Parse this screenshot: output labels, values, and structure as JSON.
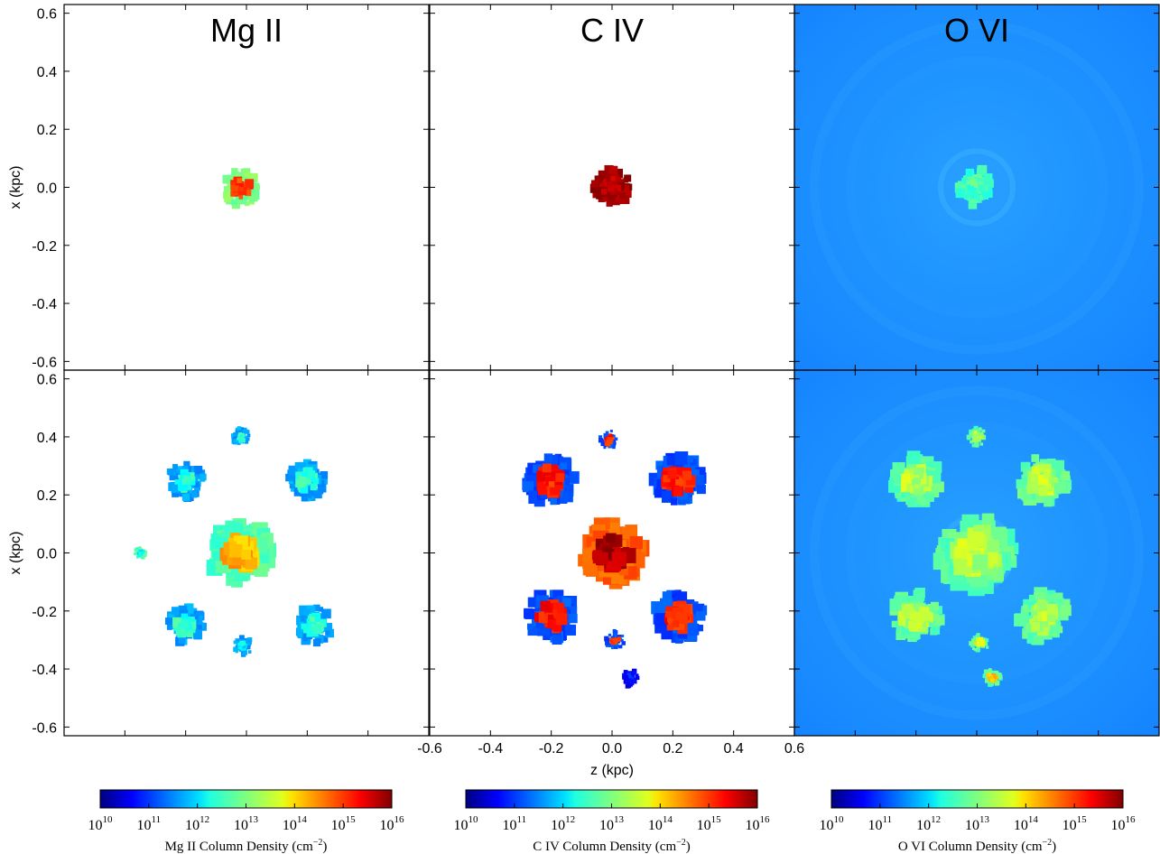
{
  "chart_data": {
    "type": "heatmap",
    "layout": "2 rows x 3 columns of column-density projection maps sharing axes",
    "panel_titles": [
      "Mg II",
      "C IV",
      "O VI"
    ],
    "ylabel": "x (kpc)",
    "xlabel": "z (kpc)",
    "xlim": [
      -0.6,
      0.6
    ],
    "ylim": [
      -0.63,
      0.63
    ],
    "y_ticks": [
      "0.6",
      "0.4",
      "0.2",
      "0.0",
      "-0.2",
      "-0.4",
      "-0.6"
    ],
    "y_tick_values": [
      0.6,
      0.4,
      0.2,
      0.0,
      -0.2,
      -0.4,
      -0.6
    ],
    "x_ticks": [
      "-0.6",
      "-0.4",
      "-0.2",
      "0.0",
      "0.2",
      "0.4",
      "0.6"
    ],
    "x_tick_values": [
      -0.6,
      -0.4,
      -0.2,
      0.0,
      0.2,
      0.4,
      0.6
    ],
    "colormap": "jet",
    "colorbars": [
      {
        "label": "Mg II Column Density (cm",
        "unit_exponent": "−2",
        "label_close": ")",
        "tick_base": "10",
        "tick_exponents": [
          "10",
          "11",
          "12",
          "13",
          "14",
          "15",
          "16"
        ],
        "range_log": [
          10,
          16
        ]
      },
      {
        "label": "C IV Column Density (cm",
        "unit_exponent": "−2",
        "label_close": ")",
        "tick_base": "10",
        "tick_exponents": [
          "10",
          "11",
          "12",
          "13",
          "14",
          "15",
          "16"
        ],
        "range_log": [
          10,
          16
        ]
      },
      {
        "label": "O VI Column Density (cm",
        "unit_exponent": "−2",
        "label_close": ")",
        "tick_base": "10",
        "tick_exponents": [
          "10",
          "11",
          "12",
          "13",
          "14",
          "15",
          "16"
        ],
        "range_log": [
          10,
          16
        ]
      }
    ],
    "panels": [
      {
        "row": 0,
        "col": 0,
        "ion": "Mg II",
        "background_log": null,
        "regions": [
          {
            "x": 0.0,
            "z": -0.02,
            "size": 0.06,
            "peak_log": 15.2,
            "edge_log": 12.8
          }
        ]
      },
      {
        "row": 0,
        "col": 1,
        "ion": "C IV",
        "background_log": null,
        "regions": [
          {
            "x": 0.0,
            "z": 0.0,
            "size": 0.06,
            "peak_log": 16.0,
            "edge_log": 15.6
          }
        ]
      },
      {
        "row": 0,
        "col": 2,
        "ion": "O VI",
        "background_log": 11.4,
        "regions": [
          {
            "x": 0.0,
            "z": 0.0,
            "size": 0.06,
            "peak_log": 13.0,
            "edge_log": 12.4
          }
        ]
      },
      {
        "row": 1,
        "col": 0,
        "ion": "Mg II",
        "background_log": null,
        "regions": [
          {
            "x": 0.0,
            "z": -0.02,
            "size": 0.1,
            "peak_log": 14.5,
            "edge_log": 12.5
          },
          {
            "x": 0.0,
            "z": -0.35,
            "size": 0.02,
            "peak_log": 12.5,
            "edge_log": 12.5
          },
          {
            "x": 0.4,
            "z": -0.02,
            "size": 0.03,
            "peak_log": 12.8,
            "edge_log": 11.5
          },
          {
            "x": -0.32,
            "z": -0.01,
            "size": 0.03,
            "peak_log": 12.5,
            "edge_log": 11.5
          },
          {
            "x": 0.25,
            "z": 0.2,
            "size": 0.06,
            "peak_log": 12.8,
            "edge_log": 11.5
          },
          {
            "x": -0.25,
            "z": 0.22,
            "size": 0.06,
            "peak_log": 12.8,
            "edge_log": 11.5
          },
          {
            "x": 0.25,
            "z": -0.2,
            "size": 0.06,
            "peak_log": 12.8,
            "edge_log": 11.5
          },
          {
            "x": -0.25,
            "z": -0.2,
            "size": 0.06,
            "peak_log": 12.8,
            "edge_log": 11.5
          }
        ]
      },
      {
        "row": 1,
        "col": 1,
        "ion": "C IV",
        "background_log": null,
        "regions": [
          {
            "x": 0.0,
            "z": 0.0,
            "size": 0.1,
            "peak_log": 16.0,
            "edge_log": 14.5
          },
          {
            "x": 0.39,
            "z": -0.01,
            "size": 0.03,
            "peak_log": 15.3,
            "edge_log": 11.0
          },
          {
            "x": -0.43,
            "z": 0.06,
            "size": 0.03,
            "peak_log": 11.2,
            "edge_log": 10.5
          },
          {
            "x": -0.3,
            "z": 0.01,
            "size": 0.03,
            "peak_log": 15.2,
            "edge_log": 11.0
          },
          {
            "x": 0.25,
            "z": -0.2,
            "size": 0.08,
            "peak_log": 15.4,
            "edge_log": 11.0
          },
          {
            "x": 0.25,
            "z": 0.22,
            "size": 0.08,
            "peak_log": 15.4,
            "edge_log": 11.0
          },
          {
            "x": -0.22,
            "z": -0.2,
            "size": 0.08,
            "peak_log": 15.4,
            "edge_log": 11.0
          },
          {
            "x": -0.22,
            "z": 0.22,
            "size": 0.08,
            "peak_log": 15.4,
            "edge_log": 11.0
          }
        ]
      },
      {
        "row": 1,
        "col": 2,
        "ion": "O VI",
        "background_log": 11.4,
        "regions": [
          {
            "x": 0.0,
            "z": 0.0,
            "size": 0.12,
            "peak_log": 13.6,
            "edge_log": 12.6
          },
          {
            "x": 0.4,
            "z": 0.0,
            "size": 0.03,
            "peak_log": 13.6,
            "edge_log": 12.6
          },
          {
            "x": -0.43,
            "z": 0.05,
            "size": 0.03,
            "peak_log": 14.5,
            "edge_log": 12.6
          },
          {
            "x": -0.31,
            "z": 0.01,
            "size": 0.03,
            "peak_log": 14.0,
            "edge_log": 12.6
          },
          {
            "x": 0.25,
            "z": -0.2,
            "size": 0.08,
            "peak_log": 13.6,
            "edge_log": 12.6
          },
          {
            "x": 0.25,
            "z": 0.22,
            "size": 0.08,
            "peak_log": 13.6,
            "edge_log": 12.6
          },
          {
            "x": -0.22,
            "z": -0.2,
            "size": 0.08,
            "peak_log": 13.6,
            "edge_log": 12.6
          },
          {
            "x": -0.22,
            "z": 0.22,
            "size": 0.08,
            "peak_log": 13.6,
            "edge_log": 12.6
          }
        ]
      }
    ]
  }
}
